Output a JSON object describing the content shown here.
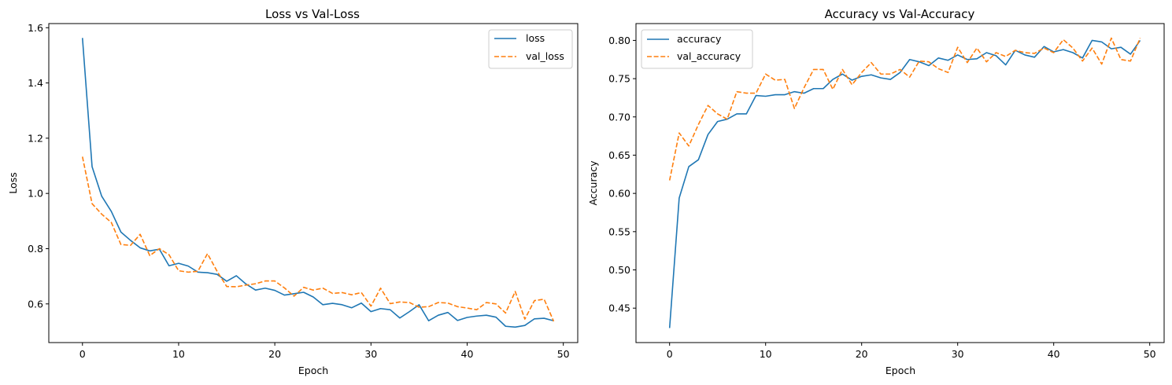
{
  "chart_data": [
    {
      "type": "line",
      "title": "Loss vs Val-Loss",
      "xlabel": "Epoch",
      "ylabel": "Loss",
      "xlim": [
        -3.5,
        51.5
      ],
      "ylim": [
        0.46,
        1.615
      ],
      "xticks": [
        0,
        10,
        20,
        30,
        40,
        50
      ],
      "yticks": [
        0.6,
        0.8,
        1.0,
        1.2,
        1.4,
        1.6
      ],
      "ytick_labels": [
        "0.6",
        "0.8",
        "1.0",
        "1.2",
        "1.4",
        "1.6"
      ],
      "legend_position": "top-right",
      "x": [
        0,
        1,
        2,
        3,
        4,
        5,
        6,
        7,
        8,
        9,
        10,
        11,
        12,
        13,
        14,
        15,
        16,
        17,
        18,
        19,
        20,
        21,
        22,
        23,
        24,
        25,
        26,
        27,
        28,
        29,
        30,
        31,
        32,
        33,
        34,
        35,
        36,
        37,
        38,
        39,
        40,
        41,
        42,
        43,
        44,
        45,
        46,
        47,
        48,
        49
      ],
      "series": [
        {
          "name": "loss",
          "color": "#1f77b4",
          "dash": "solid",
          "values": [
            1.563,
            1.097,
            0.99,
            0.935,
            0.86,
            0.83,
            0.803,
            0.792,
            0.798,
            0.738,
            0.747,
            0.737,
            0.715,
            0.713,
            0.707,
            0.682,
            0.702,
            0.672,
            0.65,
            0.657,
            0.649,
            0.632,
            0.637,
            0.642,
            0.625,
            0.597,
            0.602,
            0.597,
            0.586,
            0.603,
            0.572,
            0.583,
            0.579,
            0.549,
            0.572,
            0.597,
            0.539,
            0.559,
            0.569,
            0.54,
            0.551,
            0.556,
            0.559,
            0.552,
            0.519,
            0.516,
            0.522,
            0.546,
            0.548,
            0.539
          ]
        },
        {
          "name": "val_loss",
          "color": "#ff7f0e",
          "dash": "dashed",
          "values": [
            1.133,
            0.963,
            0.925,
            0.895,
            0.815,
            0.812,
            0.852,
            0.775,
            0.8,
            0.778,
            0.72,
            0.715,
            0.718,
            0.782,
            0.718,
            0.663,
            0.662,
            0.668,
            0.673,
            0.683,
            0.683,
            0.658,
            0.628,
            0.66,
            0.65,
            0.657,
            0.638,
            0.641,
            0.633,
            0.641,
            0.592,
            0.657,
            0.601,
            0.607,
            0.605,
            0.588,
            0.59,
            0.605,
            0.603,
            0.59,
            0.585,
            0.579,
            0.605,
            0.6,
            0.567,
            0.645,
            0.545,
            0.612,
            0.617,
            0.537
          ]
        }
      ]
    },
    {
      "type": "line",
      "title": "Accuracy vs Val-Accuracy",
      "xlabel": "Epoch",
      "ylabel": "Accuracy",
      "xlim": [
        -3.5,
        51.5
      ],
      "ylim": [
        0.405,
        0.822
      ],
      "xticks": [
        0,
        10,
        20,
        30,
        40,
        50
      ],
      "yticks": [
        0.45,
        0.5,
        0.55,
        0.6,
        0.65,
        0.7,
        0.75,
        0.8
      ],
      "ytick_labels": [
        "0.45",
        "0.50",
        "0.55",
        "0.60",
        "0.65",
        "0.70",
        "0.75",
        "0.80"
      ],
      "legend_position": "top-left",
      "x": [
        0,
        1,
        2,
        3,
        4,
        5,
        6,
        7,
        8,
        9,
        10,
        11,
        12,
        13,
        14,
        15,
        16,
        17,
        18,
        19,
        20,
        21,
        22,
        23,
        24,
        25,
        26,
        27,
        28,
        29,
        30,
        31,
        32,
        33,
        34,
        35,
        36,
        37,
        38,
        39,
        40,
        41,
        42,
        43,
        44,
        45,
        46,
        47,
        48,
        49
      ],
      "series": [
        {
          "name": "accuracy",
          "color": "#1f77b4",
          "dash": "solid",
          "values": [
            0.424,
            0.594,
            0.635,
            0.644,
            0.677,
            0.694,
            0.697,
            0.704,
            0.704,
            0.728,
            0.727,
            0.729,
            0.729,
            0.733,
            0.731,
            0.737,
            0.737,
            0.749,
            0.756,
            0.748,
            0.753,
            0.755,
            0.751,
            0.749,
            0.758,
            0.775,
            0.772,
            0.767,
            0.777,
            0.774,
            0.781,
            0.775,
            0.776,
            0.784,
            0.78,
            0.768,
            0.787,
            0.781,
            0.778,
            0.792,
            0.785,
            0.788,
            0.784,
            0.777,
            0.8,
            0.798,
            0.789,
            0.791,
            0.782,
            0.8
          ]
        },
        {
          "name": "val_accuracy",
          "color": "#ff7f0e",
          "dash": "dashed",
          "values": [
            0.617,
            0.679,
            0.662,
            0.69,
            0.715,
            0.704,
            0.697,
            0.733,
            0.731,
            0.731,
            0.756,
            0.748,
            0.749,
            0.711,
            0.738,
            0.762,
            0.762,
            0.736,
            0.762,
            0.742,
            0.758,
            0.771,
            0.756,
            0.756,
            0.762,
            0.752,
            0.773,
            0.772,
            0.763,
            0.758,
            0.791,
            0.771,
            0.79,
            0.772,
            0.784,
            0.779,
            0.787,
            0.784,
            0.783,
            0.79,
            0.784,
            0.801,
            0.79,
            0.773,
            0.79,
            0.769,
            0.803,
            0.775,
            0.773,
            0.803
          ]
        }
      ]
    }
  ]
}
